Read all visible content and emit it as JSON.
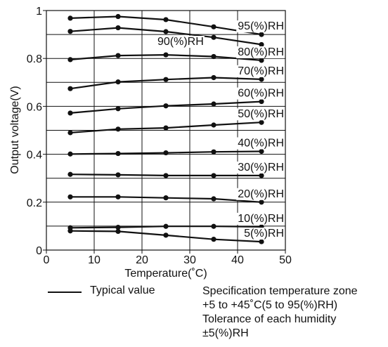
{
  "chart_data": {
    "type": "line",
    "xlabel": "Temperature(˚C)",
    "ylabel": "Output voltage(V)",
    "xlim": [
      0,
      50
    ],
    "ylim": [
      0,
      1
    ],
    "xticks": [
      "0",
      "10",
      "20",
      "30",
      "40",
      "50"
    ],
    "yticks": [
      "0",
      "0.2",
      "0.4",
      "0.6",
      "0.8",
      "1"
    ],
    "grid": true,
    "x": [
      5,
      15,
      25,
      35,
      45
    ],
    "series": [
      {
        "name": "5(%)RH",
        "values": [
          0.08,
          0.078,
          0.062,
          0.045,
          0.035
        ]
      },
      {
        "name": "10(%)RH",
        "values": [
          0.093,
          0.095,
          0.099,
          0.099,
          0.097
        ]
      },
      {
        "name": "20(%)RH",
        "values": [
          0.222,
          0.222,
          0.218,
          0.214,
          0.2
        ]
      },
      {
        "name": "30(%)RH",
        "values": [
          0.316,
          0.314,
          0.311,
          0.311,
          0.311
        ]
      },
      {
        "name": "40(%)RH",
        "values": [
          0.401,
          0.403,
          0.406,
          0.41,
          0.412
        ]
      },
      {
        "name": "50(%)RH",
        "values": [
          0.49,
          0.505,
          0.51,
          0.522,
          0.533
        ]
      },
      {
        "name": "60(%)RH",
        "values": [
          0.572,
          0.59,
          0.602,
          0.61,
          0.62
        ]
      },
      {
        "name": "70(%)RH",
        "values": [
          0.674,
          0.702,
          0.712,
          0.72,
          0.713
        ]
      },
      {
        "name": "80(%)RH",
        "values": [
          0.795,
          0.812,
          0.815,
          0.808,
          0.792
        ]
      },
      {
        "name": "90(%)RH",
        "values": [
          0.913,
          0.928,
          0.912,
          0.888,
          0.858
        ]
      },
      {
        "name": "95(%)RH",
        "values": [
          0.968,
          0.975,
          0.962,
          0.932,
          0.9
        ]
      }
    ]
  },
  "legend": {
    "typical_label": "Typical value"
  },
  "notes": {
    "line1": "Specification temperature zone",
    "line2": "+5 to +45˚C(5 to 95(%)RH)",
    "line3": "Tolerance of each humidity",
    "line4": "±5(%)RH"
  }
}
